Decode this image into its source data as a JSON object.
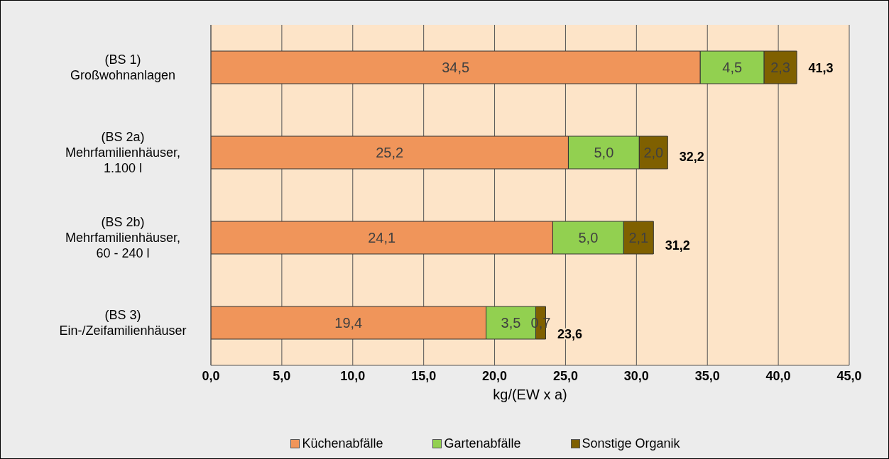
{
  "chart_data": {
    "type": "bar",
    "orientation": "horizontal",
    "stacked": true,
    "xlabel": "kg/(EW x a)",
    "categories": [
      "(BS 1)\nGroßwohnanlagen",
      "(BS 2a)\nMehrfamilienhäuser,\n1.100 l",
      "(BS 2b)\nMehrfamilienhäuser,\n60 - 240 l",
      "(BS 3)\nEin-/Zeifamilienhäuser"
    ],
    "series": [
      {
        "name": "Küchenabfälle",
        "color": "#f0955a",
        "values": [
          34.5,
          25.2,
          24.1,
          19.4
        ],
        "value_labels": [
          "34,5",
          "25,2",
          "24,1",
          "19,4"
        ]
      },
      {
        "name": "Gartenabfälle",
        "color": "#92d050",
        "values": [
          4.5,
          5.0,
          5.0,
          3.5
        ],
        "value_labels": [
          "4,5",
          "5,0",
          "5,0",
          "3,5"
        ]
      },
      {
        "name": "Sonstige Organik",
        "color": "#7f6000",
        "values": [
          2.3,
          2.0,
          2.1,
          0.7
        ],
        "value_labels": [
          "2,3",
          "2,0",
          "2,1",
          "0,7"
        ]
      }
    ],
    "totals": [
      "41,3",
      "32,2",
      "31,2",
      "23,6"
    ],
    "xlim": [
      0,
      45
    ],
    "xticks": [
      {
        "value": 0,
        "label": "0,0"
      },
      {
        "value": 5,
        "label": "5,0"
      },
      {
        "value": 10,
        "label": "10,0"
      },
      {
        "value": 15,
        "label": "15,0"
      },
      {
        "value": 20,
        "label": "20,0"
      },
      {
        "value": 25,
        "label": "25,0"
      },
      {
        "value": 30,
        "label": "30,0"
      },
      {
        "value": 35,
        "label": "35,0"
      },
      {
        "value": 40,
        "label": "40,0"
      },
      {
        "value": 45,
        "label": "45,0"
      }
    ],
    "grid": "x",
    "legend": "bottom"
  }
}
